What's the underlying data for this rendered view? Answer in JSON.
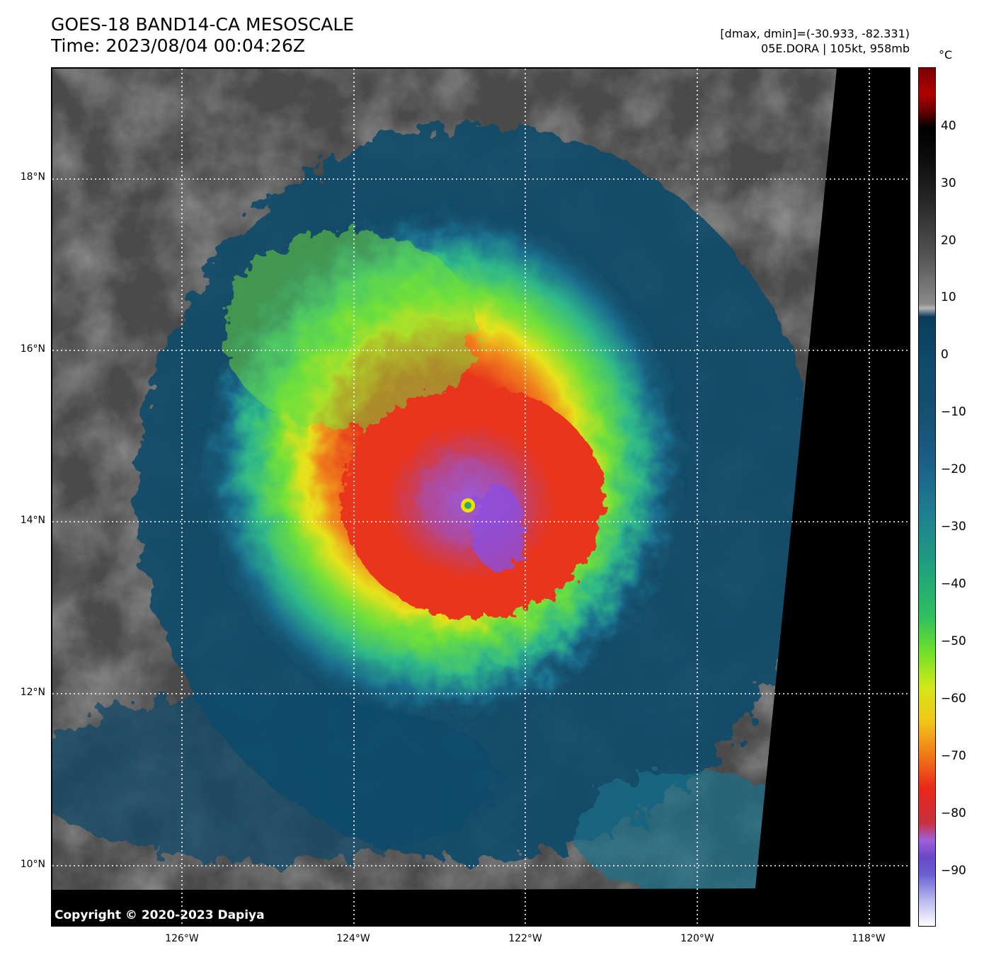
{
  "header": {
    "title_line1": "GOES-18 BAND14-CA MESOSCALE",
    "title_line2": "Time: 2023/08/04 00:04:26Z",
    "dminmax": "[dmax, dmin]=(-30.933, -82.331)",
    "storm": "05E.DORA | 105kt, 958mb"
  },
  "map": {
    "copyright": "Copyright © 2020-2023 Dapiya",
    "lat_labels": [
      "18°N",
      "16°N",
      "14°N",
      "12°N",
      "10°N"
    ],
    "lon_labels": [
      "126°W",
      "124°W",
      "122°W",
      "120°W",
      "118°W"
    ]
  },
  "colorbar": {
    "unit": "°C",
    "ticks": [
      "40",
      "30",
      "20",
      "10",
      "0",
      "−10",
      "−20",
      "−30",
      "−40",
      "−50",
      "−60",
      "−70",
      "−80",
      "−90"
    ]
  }
}
